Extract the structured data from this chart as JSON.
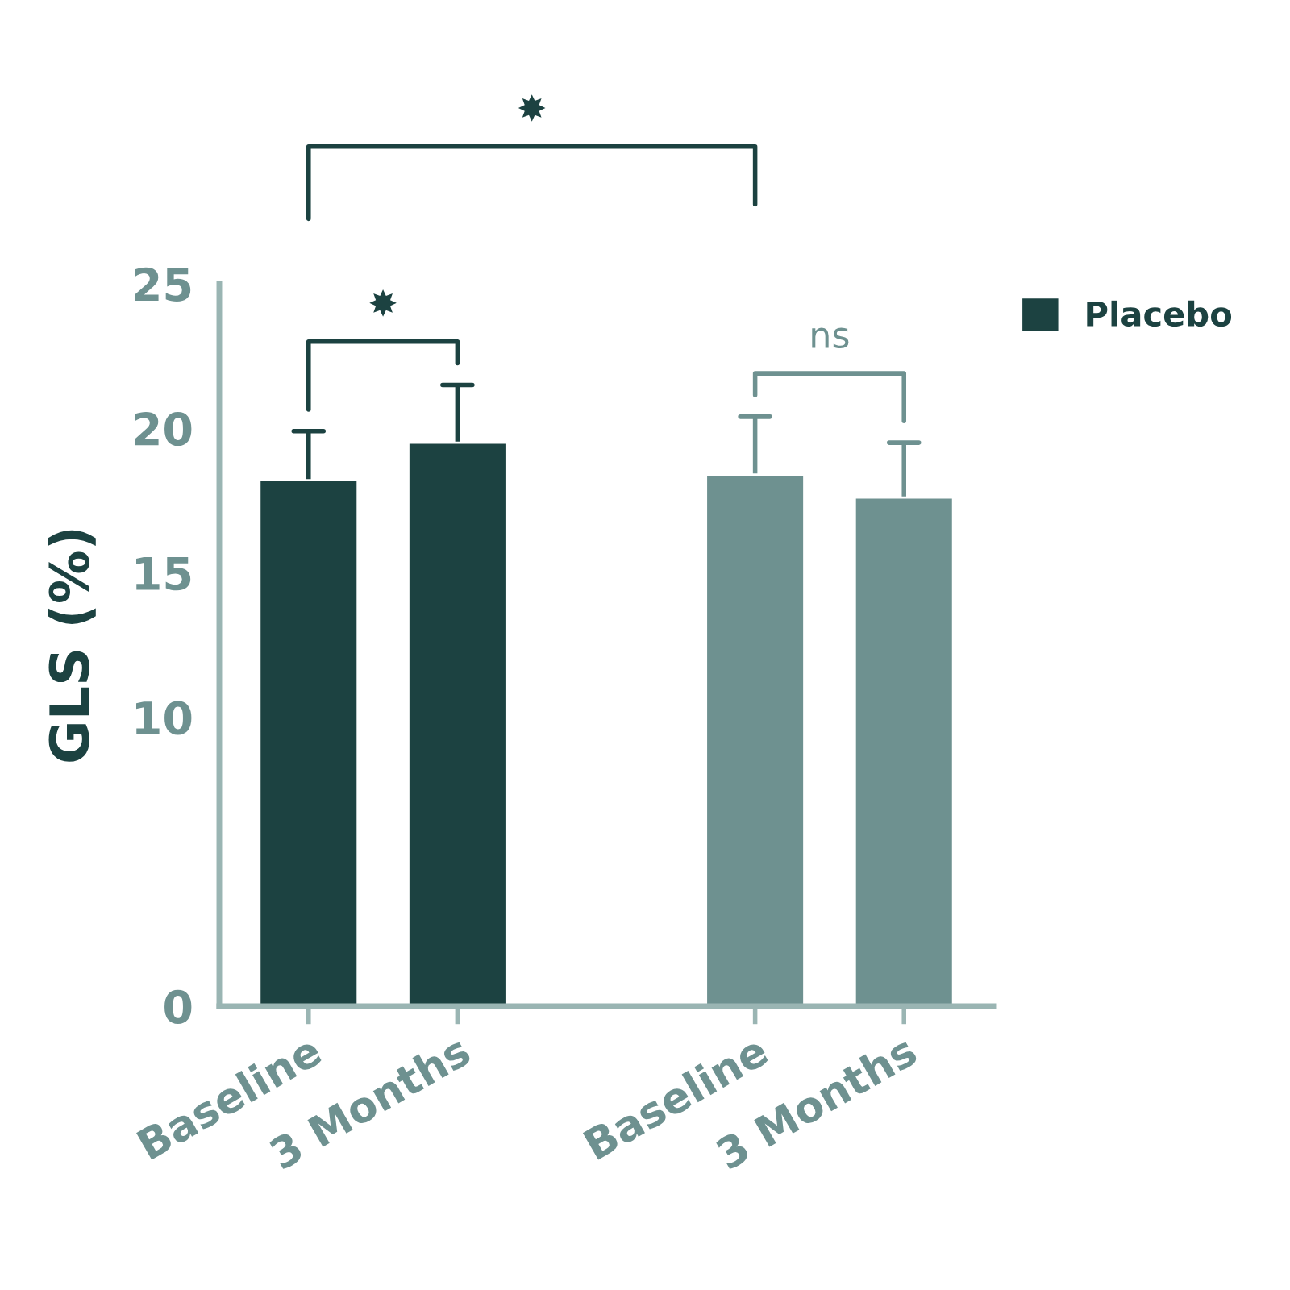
{
  "chart_data": {
    "type": "bar",
    "ylabel": "GLS (%)",
    "categories": [
      "Baseline",
      "3 Months",
      null,
      "Baseline",
      "3 Months"
    ],
    "series": [
      {
        "name": "Placebo",
        "color": "#1c4241",
        "values": [
          18.2,
          19.5,
          null,
          null,
          null
        ],
        "errors": [
          1.7,
          2.0,
          null,
          null,
          null
        ]
      },
      {
        "color": "#6e9190",
        "values": [
          null,
          null,
          null,
          18.4,
          17.6
        ],
        "errors": [
          null,
          null,
          null,
          2.0,
          1.9
        ]
      }
    ],
    "ylim": [
      0,
      25
    ],
    "yticks": [
      0,
      10,
      15,
      20,
      25
    ],
    "annotations": [
      "✸",
      "ns",
      "✸"
    ],
    "legend": "top right",
    "grid": false
  }
}
